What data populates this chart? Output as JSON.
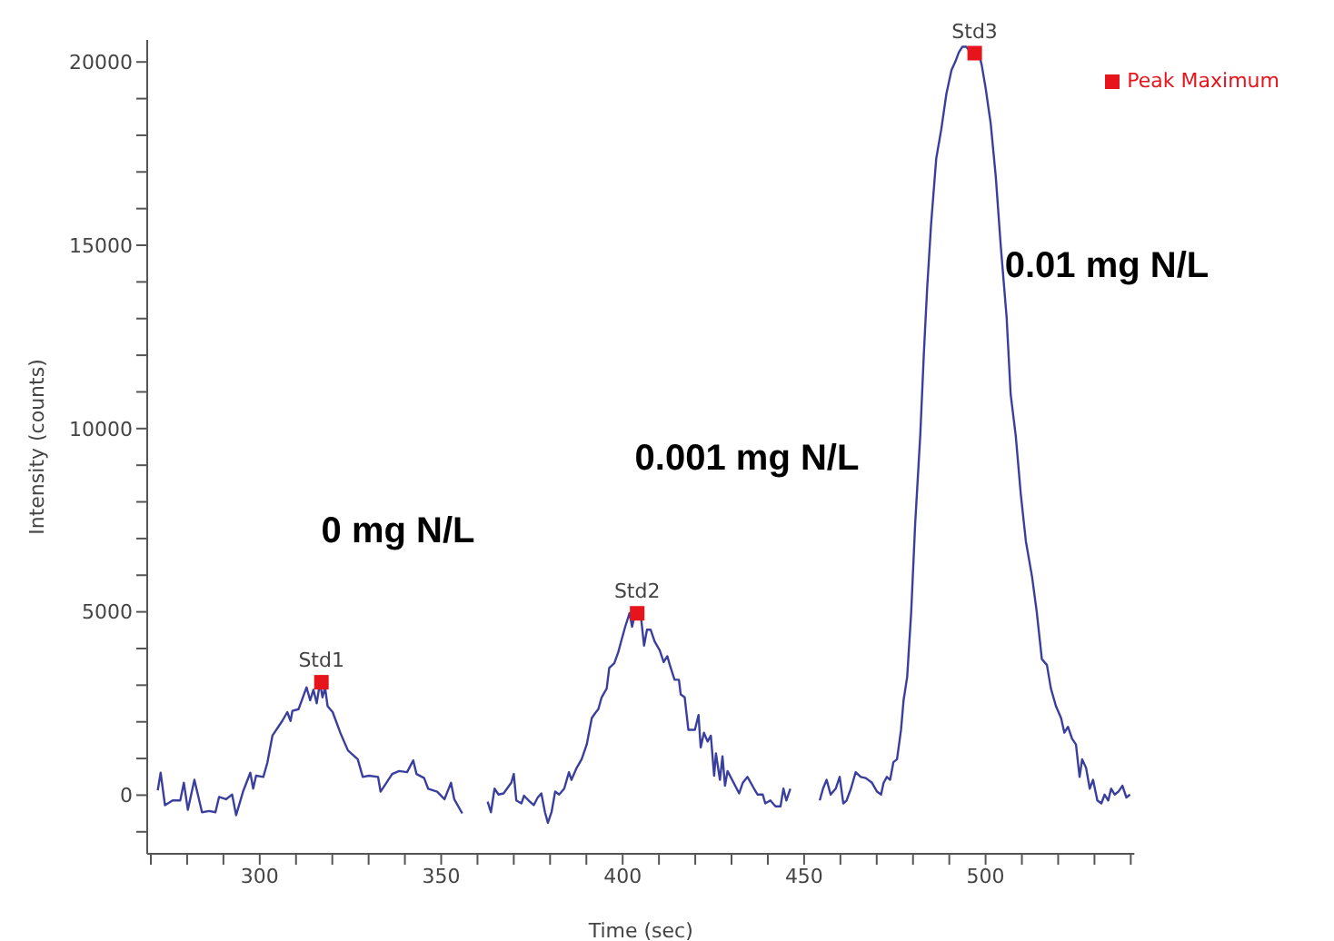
{
  "chart_data": {
    "type": "line",
    "xlabel": "Time (sec)",
    "ylabel": "Intensity (counts)",
    "xlim": [
      269,
      541
    ],
    "ylim": [
      -1600,
      20600
    ],
    "xticks": [
      {
        "value": 270,
        "label": null
      },
      {
        "value": 280,
        "label": null
      },
      {
        "value": 290,
        "label": null
      },
      300,
      {
        "value": 310,
        "label": null
      },
      {
        "value": 320,
        "label": null
      },
      {
        "value": 330,
        "label": null
      },
      {
        "value": 340,
        "label": null
      },
      350,
      {
        "value": 360,
        "label": null
      },
      {
        "value": 370,
        "label": null
      },
      {
        "value": 380,
        "label": null
      },
      {
        "value": 390,
        "label": null
      },
      400,
      {
        "value": 410,
        "label": null
      },
      {
        "value": 420,
        "label": null
      },
      {
        "value": 430,
        "label": null
      },
      {
        "value": 440,
        "label": null
      },
      450,
      {
        "value": 460,
        "label": null
      },
      {
        "value": 470,
        "label": null
      },
      {
        "value": 480,
        "label": null
      },
      {
        "value": 490,
        "label": null
      },
      500,
      {
        "value": 510,
        "label": null
      },
      {
        "value": 520,
        "label": null
      },
      {
        "value": 530,
        "label": null
      },
      {
        "value": 540,
        "label": null
      }
    ],
    "yticks": [
      {
        "value": -1000,
        "label": null
      },
      0,
      {
        "value": 1000,
        "label": null
      },
      {
        "value": 2000,
        "label": null
      },
      {
        "value": 3000,
        "label": null
      },
      {
        "value": 4000,
        "label": null
      },
      5000,
      {
        "value": 6000,
        "label": null
      },
      {
        "value": 7000,
        "label": null
      },
      {
        "value": 8000,
        "label": null
      },
      {
        "value": 9000,
        "label": null
      },
      10000,
      {
        "value": 11000,
        "label": null
      },
      {
        "value": 12000,
        "label": null
      },
      {
        "value": 13000,
        "label": null
      },
      {
        "value": 14000,
        "label": null
      },
      15000,
      {
        "value": 16000,
        "label": null
      },
      {
        "value": 17000,
        "label": null
      },
      {
        "value": 18000,
        "label": null
      },
      {
        "value": 19000,
        "label": null
      },
      20000
    ],
    "legend": "top right",
    "series": [
      {
        "color": "#3a3f9e",
        "marker": "none",
        "x": [
          271.9,
          272.7,
          273.9,
          276,
          278.1,
          279.1,
          280.2,
          282,
          284.1,
          286.1,
          287.8,
          288.8,
          290.7,
          292.4,
          293.5,
          295.4,
          297.4,
          298.2,
          299,
          301,
          302.1,
          303.5,
          306.2,
          307.6,
          308.5,
          309,
          310.7,
          312.9,
          313.9,
          314.8,
          315.7,
          316.6,
          317.3,
          318,
          318.7,
          320.1,
          322.2,
          324.3,
          327,
          328.4,
          330.1,
          332.6,
          333.3,
          336.5,
          338.4,
          340.6,
          342.3,
          343.2,
          345.3,
          346.4,
          348.9,
          350.9,
          352.7,
          353.6,
          355.8,
          359,
          362.8,
          363.7,
          364.7,
          365.8,
          367.2,
          369.3,
          370,
          370.7,
          372.1,
          372.8,
          374.1,
          375.5,
          376.6,
          377.6,
          378.6,
          379.4,
          380.4,
          381.4,
          382.5,
          383.9,
          385.2,
          385.9,
          387.3,
          388.7,
          390.1,
          391.5,
          392.4,
          393.3,
          394.2,
          395.6,
          396.3,
          397.7,
          398.8,
          399.8,
          400.7,
          401.9,
          402.6,
          403.2,
          404,
          404.9,
          405.9,
          406.7,
          407.7,
          408.8,
          410.2,
          411.3,
          412.3,
          413,
          414.3,
          415.5,
          416,
          417.1,
          418.1,
          419.9,
          420.9,
          421.5,
          422.4,
          423.4,
          424.3,
          425.2,
          425.7,
          426.8,
          427.5,
          428.2,
          428.9,
          431,
          432.1,
          433.1,
          434.4,
          436.2,
          437.2,
          438.6,
          439.3,
          440.7,
          442.1,
          443.5,
          444.3,
          445.1,
          446.2,
          450,
          454.3,
          455.2,
          456.2,
          457.3,
          458.7,
          459.8,
          460.8,
          461.7,
          462.9,
          464.2,
          465.6,
          467,
          468.7,
          470.1,
          471.2,
          471.9,
          472.8,
          473.7,
          474.6,
          475.6,
          476.7,
          477.4,
          478.4,
          479.5,
          480.6,
          482,
          483,
          483.9,
          485,
          486.4,
          487.8,
          489.2,
          490.6,
          491.7,
          492.6,
          493.6,
          494.7,
          495.6,
          496.4,
          497.1,
          497.8,
          498.9,
          500,
          501.4,
          502.8,
          504.2,
          505.8,
          506.9,
          508.3,
          509.7,
          511.1,
          512.8,
          514.1,
          515.5,
          516.9,
          518,
          519.4,
          520.8,
          521.7,
          522.7,
          523.8,
          524.9,
          525.9,
          526.6,
          527.7,
          528.7,
          529.6,
          530.8,
          531.9,
          532.8,
          533.8,
          534.6,
          535.6,
          536.6,
          537.7,
          538.8,
          539.8
        ],
        "values": [
          130,
          612,
          -275,
          -145,
          -145,
          337,
          -400,
          419,
          -467,
          -434,
          -467,
          -48,
          -112,
          16,
          -546,
          96,
          611,
          177,
          530,
          498,
          883,
          1622,
          2024,
          2265,
          2024,
          2297,
          2345,
          2940,
          2587,
          2875,
          2506,
          3068,
          2667,
          2940,
          2426,
          2265,
          1703,
          1221,
          980,
          498,
          530,
          498,
          96,
          578,
          659,
          626,
          948,
          578,
          466,
          177,
          96,
          -112,
          337,
          -112,
          -498,
          null,
          -177,
          -466,
          177,
          16,
          48,
          337,
          578,
          -145,
          -225,
          -16,
          -145,
          -273,
          -64,
          48,
          -466,
          -755,
          -466,
          96,
          16,
          177,
          626,
          417,
          739,
          980,
          1381,
          2104,
          2233,
          2345,
          2667,
          2908,
          3470,
          3598,
          3903,
          4273,
          4594,
          4964,
          4594,
          4867,
          4995,
          4995,
          4080,
          4514,
          4514,
          4193,
          3952,
          3630,
          3791,
          3550,
          3148,
          3148,
          2747,
          2667,
          1783,
          1783,
          2185,
          1301,
          1703,
          1462,
          1622,
          530,
          1140,
          417,
          1060,
          257,
          658,
          257,
          48,
          337,
          498,
          177,
          16,
          16,
          -225,
          -145,
          -305,
          -305,
          177,
          -145,
          177,
          null,
          -145,
          177,
          418,
          16,
          177,
          498,
          -225,
          -145,
          177,
          626,
          498,
          466,
          337,
          96,
          16,
          337,
          498,
          418,
          899,
          980,
          1783,
          2586,
          3229,
          4995,
          7405,
          9815,
          12064,
          13831,
          15598,
          17365,
          18168,
          19132,
          19774,
          20015,
          20256,
          20416,
          20416,
          20288,
          20336,
          20224,
          20336,
          19935,
          19293,
          18329,
          16882,
          14954,
          13027,
          10938,
          9815,
          8209,
          6924,
          5961,
          4995,
          3711,
          3551,
          2907,
          2425,
          2104,
          1703,
          1864,
          1542,
          1382,
          498,
          980,
          739,
          177,
          418,
          -145,
          -225,
          16,
          -145,
          177,
          16,
          96,
          257,
          -64,
          16
        ]
      },
      {
        "type": "scatter",
        "name": "Peak Maximum",
        "color": "#e8141c",
        "marker": "square",
        "x": [
          317,
          404,
          497
        ],
        "values": [
          3080,
          4960,
          20240
        ],
        "value_labels": [
          "Std1",
          "Std2",
          "Std3"
        ]
      }
    ],
    "annotations": [
      "0 mg N/L",
      "0.001 mg N/L",
      "0.01 mg N/L"
    ]
  }
}
